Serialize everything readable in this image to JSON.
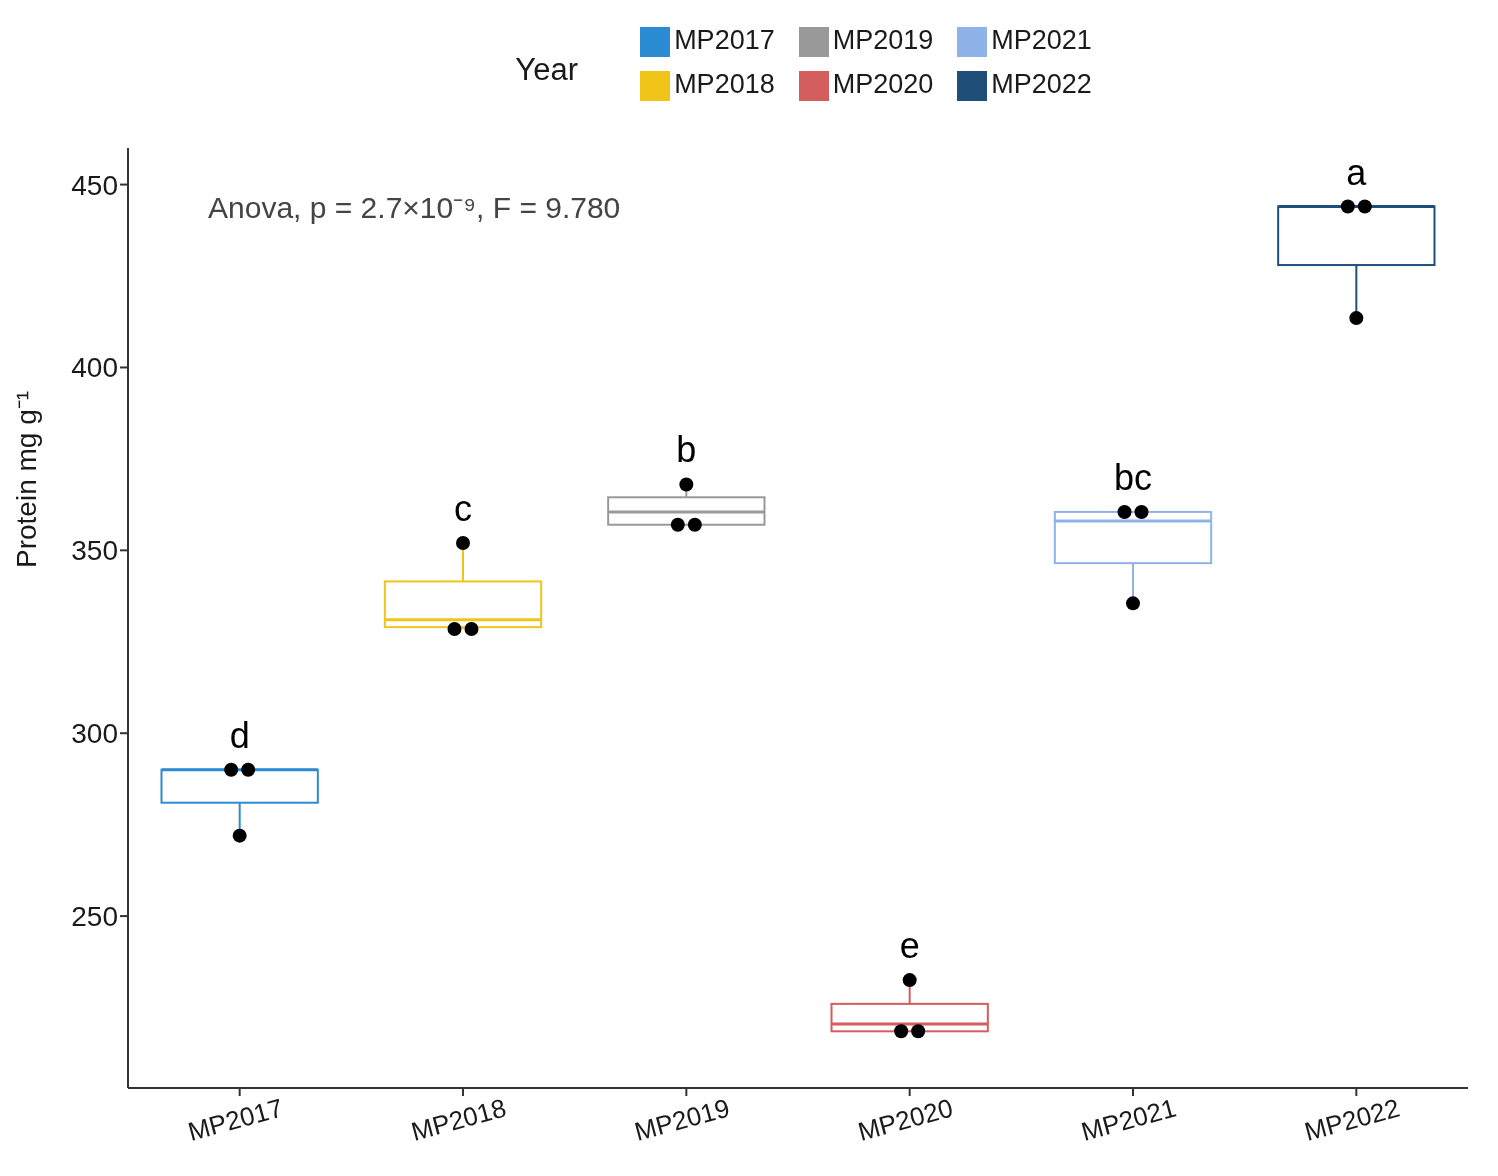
{
  "chart_data": {
    "type": "box",
    "ylabel": "Protein mg g⁻¹",
    "legend_title": "Year",
    "legend": "top",
    "categories": [
      "MP2017",
      "MP2018",
      "MP2019",
      "MP2020",
      "MP2021",
      "MP2022"
    ],
    "series": [
      {
        "name": "MP2017",
        "color": "#2b8cd3",
        "boxes": [
          {
            "low": 272,
            "q1": 281,
            "median": 290,
            "q3": 290,
            "high": 290
          },
          null,
          null,
          null,
          null,
          null
        ]
      },
      {
        "name": "MP2018",
        "color": "#f0c419",
        "boxes": [
          null,
          {
            "low": 328.5,
            "q1": 329,
            "median": 331,
            "q3": 341.5,
            "high": 352
          },
          null,
          null,
          null,
          null
        ]
      },
      {
        "name": "MP2019",
        "color": "#999999",
        "boxes": [
          null,
          null,
          {
            "low": 357,
            "q1": 357,
            "median": 360.5,
            "q3": 364.5,
            "high": 368
          },
          null,
          null,
          null
        ]
      },
      {
        "name": "MP2020",
        "color": "#d45d5d",
        "boxes": [
          null,
          null,
          null,
          {
            "low": 218.5,
            "q1": 218.5,
            "median": 220.5,
            "q3": 226,
            "high": 232.5
          },
          null,
          null
        ]
      },
      {
        "name": "MP2021",
        "color": "#8fb3e8",
        "boxes": [
          null,
          null,
          null,
          null,
          {
            "low": 335.5,
            "q1": 346.5,
            "median": 358,
            "q3": 360.5,
            "high": 360.5
          },
          null
        ]
      },
      {
        "name": "MP2022",
        "color": "#1f4e79",
        "boxes": [
          null,
          null,
          null,
          null,
          null,
          {
            "low": 413.5,
            "q1": 428,
            "median": 444,
            "q3": 444,
            "high": 444
          }
        ]
      },
      {
        "type": "scatter",
        "color": "#000000",
        "marker": "circle",
        "x": [
          "MP2017",
          "MP2017",
          "MP2017",
          "MP2018",
          "MP2018",
          "MP2018",
          "MP2019",
          "MP2019",
          "MP2019",
          "MP2020",
          "MP2020",
          "MP2020",
          "MP2021",
          "MP2021",
          "MP2021",
          "MP2022",
          "MP2022",
          "MP2022"
        ],
        "values": [
          290,
          290,
          272,
          352,
          328.5,
          328.5,
          368,
          357,
          357,
          232.5,
          218.5,
          218.5,
          360.5,
          360.5,
          335.5,
          444,
          444,
          413.5
        ]
      }
    ],
    "ylim": [
      203,
      460
    ],
    "yticks": [
      250,
      300,
      350,
      400,
      450
    ],
    "annotations": [
      "Anova, p = 2.7×10⁻⁹, F = 9.780",
      {
        "text": "d",
        "x": "MP2017",
        "y": 290
      },
      {
        "text": "c",
        "x": "MP2018",
        "y": 352
      },
      {
        "text": "b",
        "x": "MP2019",
        "y": 368
      },
      {
        "text": "e",
        "x": "MP2020",
        "y": 232.5
      },
      {
        "text": "bc",
        "x": "MP2021",
        "y": 360.5
      },
      {
        "text": "a",
        "x": "MP2022",
        "y": 444
      }
    ]
  }
}
